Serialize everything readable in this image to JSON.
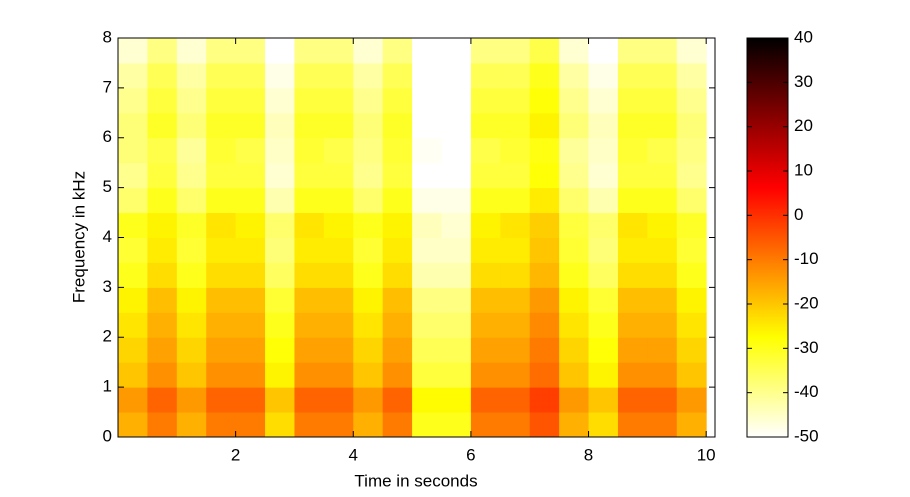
{
  "chart_data": {
    "type": "heatmap",
    "xlabel": "Time in seconds",
    "ylabel": "Frequency in kHz",
    "xlim": [
      0,
      10.15
    ],
    "xticks": [
      2,
      4,
      6,
      8,
      10
    ],
    "ylim": [
      0,
      8
    ],
    "yticks": [
      0,
      1,
      2,
      3,
      4,
      5,
      6,
      7,
      8
    ],
    "clim": [
      -50,
      40
    ],
    "cticks": [
      -50,
      -40,
      -30,
      -20,
      -10,
      0,
      10,
      20,
      30,
      40
    ],
    "colormap": "hot-reversed",
    "x_edges": [
      0,
      0.5,
      1,
      1.5,
      2,
      2.5,
      3,
      3.5,
      4,
      4.5,
      5,
      5.5,
      6,
      6.5,
      7,
      7.5,
      8,
      8.5,
      9,
      9.5,
      10
    ],
    "y_edges": [
      0,
      0.5,
      1,
      1.5,
      2,
      2.5,
      3,
      3.5,
      4,
      4.5,
      5,
      5.5,
      6,
      6.5,
      7,
      7.5,
      8
    ],
    "z": [
      [
        -17,
        -10,
        -17,
        -10,
        -10,
        -23,
        -10,
        -10,
        -17,
        -10,
        -30,
        -30,
        -10,
        -10,
        -5,
        -17,
        -23,
        -10,
        -10,
        -17
      ],
      [
        -14,
        -7,
        -14,
        -7,
        -7,
        -20,
        -7,
        -7,
        -14,
        -7,
        -27,
        -27,
        -7,
        -7,
        -2,
        -14,
        -20,
        -7,
        -7,
        -14
      ],
      [
        -20,
        -13,
        -20,
        -13,
        -13,
        -26,
        -13,
        -13,
        -20,
        -13,
        -33,
        -33,
        -13,
        -13,
        -8,
        -20,
        -26,
        -13,
        -13,
        -20
      ],
      [
        -22,
        -15,
        -22,
        -15,
        -15,
        -28,
        -15,
        -15,
        -22,
        -15,
        -35,
        -35,
        -15,
        -15,
        -10,
        -22,
        -28,
        -15,
        -15,
        -22
      ],
      [
        -24,
        -17,
        -24,
        -17,
        -17,
        -30,
        -17,
        -17,
        -24,
        -17,
        -37,
        -37,
        -17,
        -17,
        -12,
        -24,
        -30,
        -17,
        -17,
        -24
      ],
      [
        -26,
        -19,
        -26,
        -19,
        -19,
        -32,
        -19,
        -19,
        -26,
        -19,
        -39,
        -39,
        -19,
        -19,
        -14,
        -26,
        -32,
        -19,
        -19,
        -26
      ],
      [
        -30,
        -23,
        -30,
        -23,
        -23,
        -36,
        -23,
        -23,
        -30,
        -23,
        -43,
        -43,
        -23,
        -23,
        -18,
        -30,
        -36,
        -23,
        -23,
        -30
      ],
      [
        -32,
        -25,
        -32,
        -25,
        -25,
        -38,
        -25,
        -25,
        -32,
        -25,
        -45,
        -45,
        -25,
        -25,
        -20,
        -32,
        -38,
        -25,
        -25,
        -32
      ],
      [
        -30,
        -26,
        -31,
        -24,
        -26,
        -37,
        -24,
        -26,
        -30,
        -26,
        -44,
        -46,
        -26,
        -24,
        -21,
        -33,
        -37,
        -24,
        -26,
        -31
      ],
      [
        -37,
        -30,
        -37,
        -30,
        -30,
        -43,
        -30,
        -30,
        -37,
        -30,
        -48,
        -48,
        -30,
        -30,
        -25,
        -37,
        -43,
        -30,
        -30,
        -37
      ],
      [
        -40,
        -33,
        -40,
        -33,
        -33,
        -46,
        -33,
        -33,
        -40,
        -33,
        -50,
        -50,
        -33,
        -33,
        -28,
        -40,
        -46,
        -33,
        -33,
        -40
      ],
      [
        -38,
        -34,
        -41,
        -32,
        -34,
        -45,
        -32,
        -34,
        -39,
        -32,
        -49,
        -50,
        -34,
        -32,
        -29,
        -41,
        -45,
        -32,
        -34,
        -39
      ],
      [
        -38,
        -31,
        -38,
        -31,
        -31,
        -44,
        -31,
        -31,
        -38,
        -31,
        -50,
        -50,
        -31,
        -31,
        -26,
        -38,
        -44,
        -31,
        -31,
        -38
      ],
      [
        -40,
        -33,
        -40,
        -33,
        -33,
        -46,
        -33,
        -33,
        -40,
        -33,
        -50,
        -50,
        -33,
        -33,
        -28,
        -40,
        -46,
        -33,
        -33,
        -40
      ],
      [
        -42,
        -35,
        -42,
        -35,
        -35,
        -48,
        -35,
        -35,
        -42,
        -35,
        -50,
        -50,
        -35,
        -35,
        -30,
        -42,
        -48,
        -35,
        -35,
        -42
      ],
      [
        -46,
        -39,
        -46,
        -39,
        -39,
        -50,
        -39,
        -39,
        -46,
        -39,
        -50,
        -50,
        -39,
        -39,
        -34,
        -46,
        -50,
        -39,
        -39,
        -46
      ]
    ]
  }
}
